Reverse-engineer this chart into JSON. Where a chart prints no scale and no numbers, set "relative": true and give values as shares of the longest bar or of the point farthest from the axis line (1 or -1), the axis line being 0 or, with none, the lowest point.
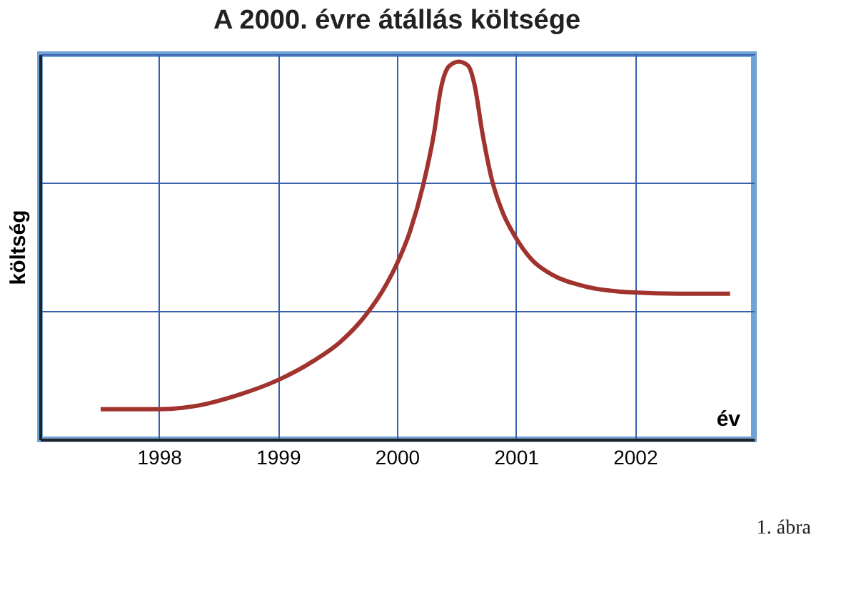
{
  "chart_data": {
    "type": "line",
    "title": "A 2000. évre átállás költsége",
    "xlabel": "év",
    "ylabel": "költség",
    "relative": true,
    "x": [
      1997.51,
      1998.0,
      1998.3,
      1998.65,
      1999.0,
      1999.3,
      1999.52,
      1999.74,
      1999.91,
      2000.0,
      2000.11,
      2000.22,
      2000.31,
      2000.37,
      2000.44,
      2000.52,
      2000.6,
      2000.65,
      2000.72,
      2000.8,
      2000.89,
      2000.99,
      2001.13,
      2001.31,
      2001.57,
      2001.99,
      2002.36,
      2002.8
    ],
    "series": [
      {
        "color": "#a0332e",
        "values": [
          0.08,
          0.08,
          0.088,
          0.116,
          0.157,
          0.208,
          0.257,
          0.33,
          0.41,
          0.465,
          0.551,
          0.673,
          0.808,
          0.93,
          0.989,
          1.0,
          0.989,
          0.942,
          0.808,
          0.685,
          0.6,
          0.539,
          0.477,
          0.435,
          0.406,
          0.389,
          0.386,
          0.386
        ]
      }
    ],
    "xlim": [
      1997,
      2003
    ],
    "xticks": [
      1998,
      1999,
      2000,
      2001,
      2002
    ],
    "grid": true,
    "annotations": [
      "1. ábra"
    ]
  }
}
